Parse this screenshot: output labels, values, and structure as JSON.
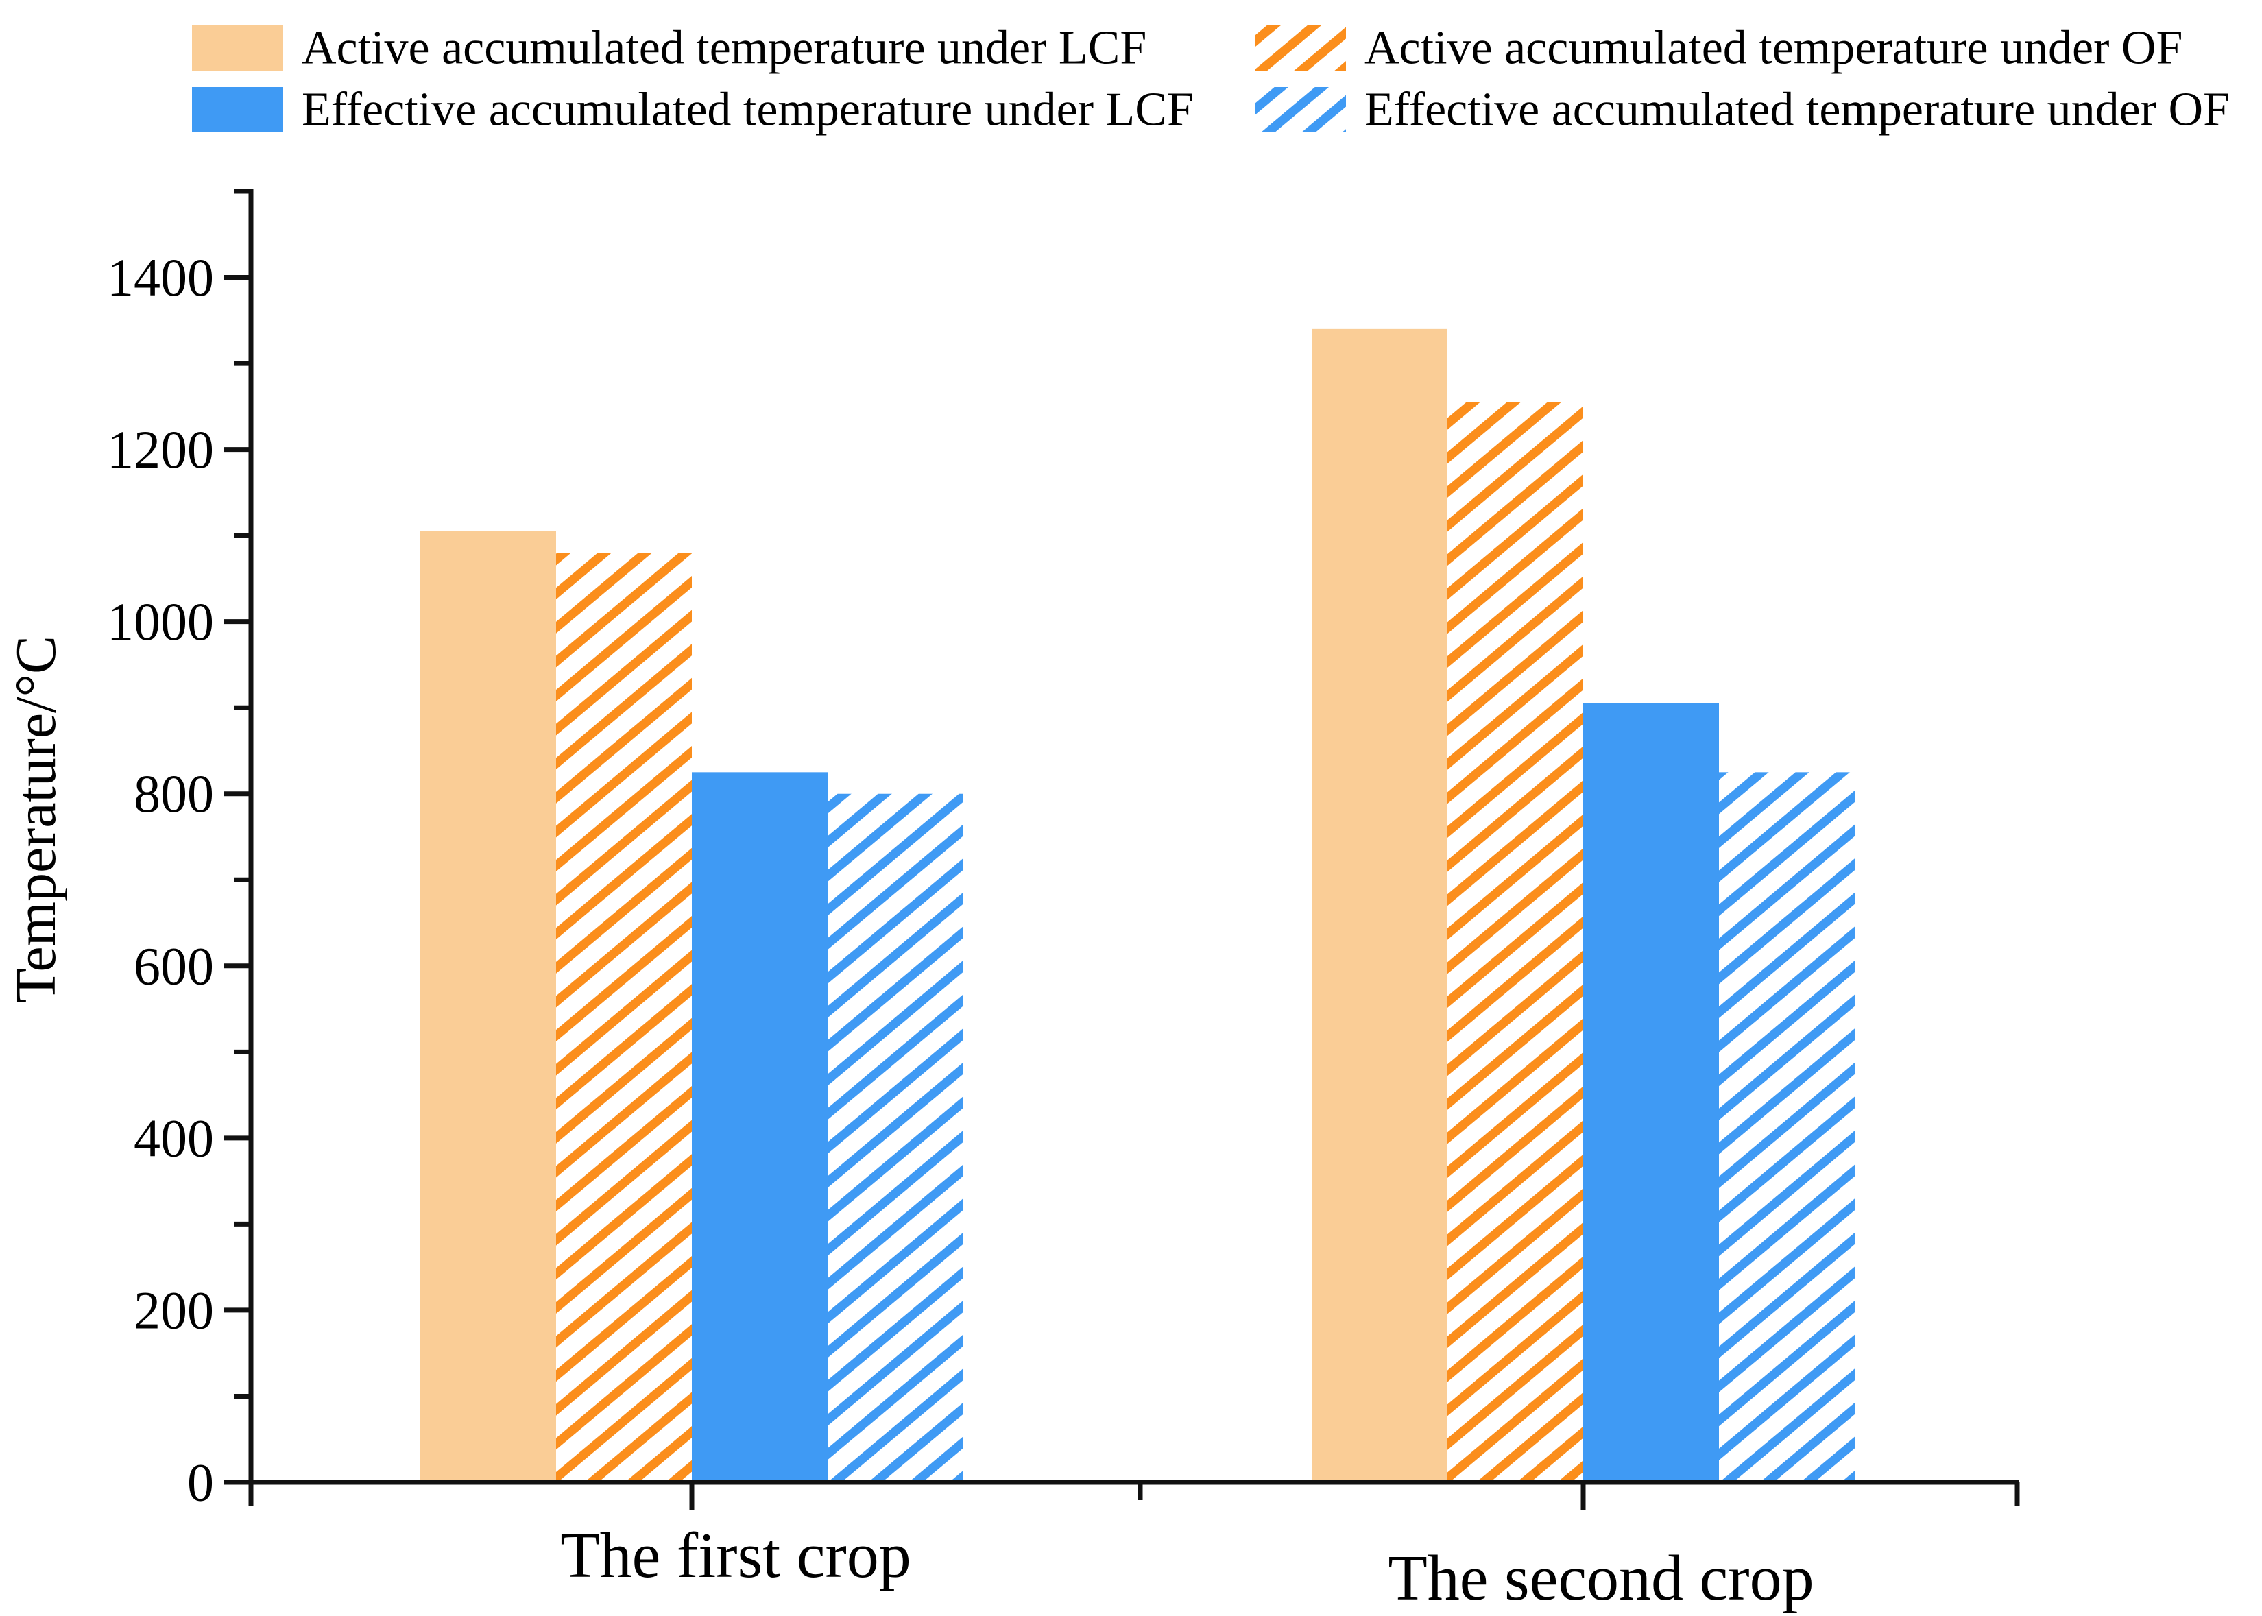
{
  "legend": {
    "items": [
      {
        "id": "active-lcf",
        "label": "Active accumulated temperature under LCF",
        "swatch": "solid",
        "color_key": "solid_orange",
        "col": 0,
        "row": 0
      },
      {
        "id": "effective-lcf",
        "label": "Effective accumulated temperature under LCF",
        "swatch": "solid",
        "color_key": "solid_blue",
        "col": 0,
        "row": 1
      },
      {
        "id": "active-of",
        "label": "Active accumulated temperature under OF",
        "swatch": "hatch",
        "color_key": "hatch_orange",
        "col": 1,
        "row": 0
      },
      {
        "id": "effective-of",
        "label": "Effective accumulated temperature under OF",
        "swatch": "hatch",
        "color_key": "hatch_blue",
        "col": 1,
        "row": 1
      }
    ]
  },
  "colors": {
    "solid_orange": "#FACD96",
    "hatch_orange": "#FB8E1C",
    "solid_blue": "#3F9AF4",
    "hatch_blue": "#3F9AF4",
    "axis": "#111111",
    "text": "#000000"
  },
  "chart_data": {
    "type": "bar",
    "title": "",
    "categories": [
      "The first crop",
      "The second crop"
    ],
    "series": [
      {
        "name": "Active accumulated temperature under LCF",
        "pattern": "solid",
        "color_key": "solid_orange",
        "values": [
          1105,
          1340
        ]
      },
      {
        "name": "Active accumulated temperature under OF",
        "pattern": "hatch",
        "color_key": "hatch_orange",
        "values": [
          1080,
          1255
        ]
      },
      {
        "name": "Effective accumulated temperature under LCF",
        "pattern": "solid",
        "color_key": "solid_blue",
        "values": [
          825,
          905
        ]
      },
      {
        "name": "Effective accumulated temperature under OF",
        "pattern": "hatch",
        "color_key": "hatch_blue",
        "values": [
          800,
          825
        ]
      }
    ],
    "xlabel": "",
    "ylabel": "Temperature/°C",
    "ylim": [
      0,
      1500
    ],
    "ytick_major": [
      0,
      200,
      400,
      600,
      800,
      1000,
      1200,
      1400
    ],
    "ytick_minor_step": 100,
    "grid": false,
    "legend_position": "top"
  }
}
